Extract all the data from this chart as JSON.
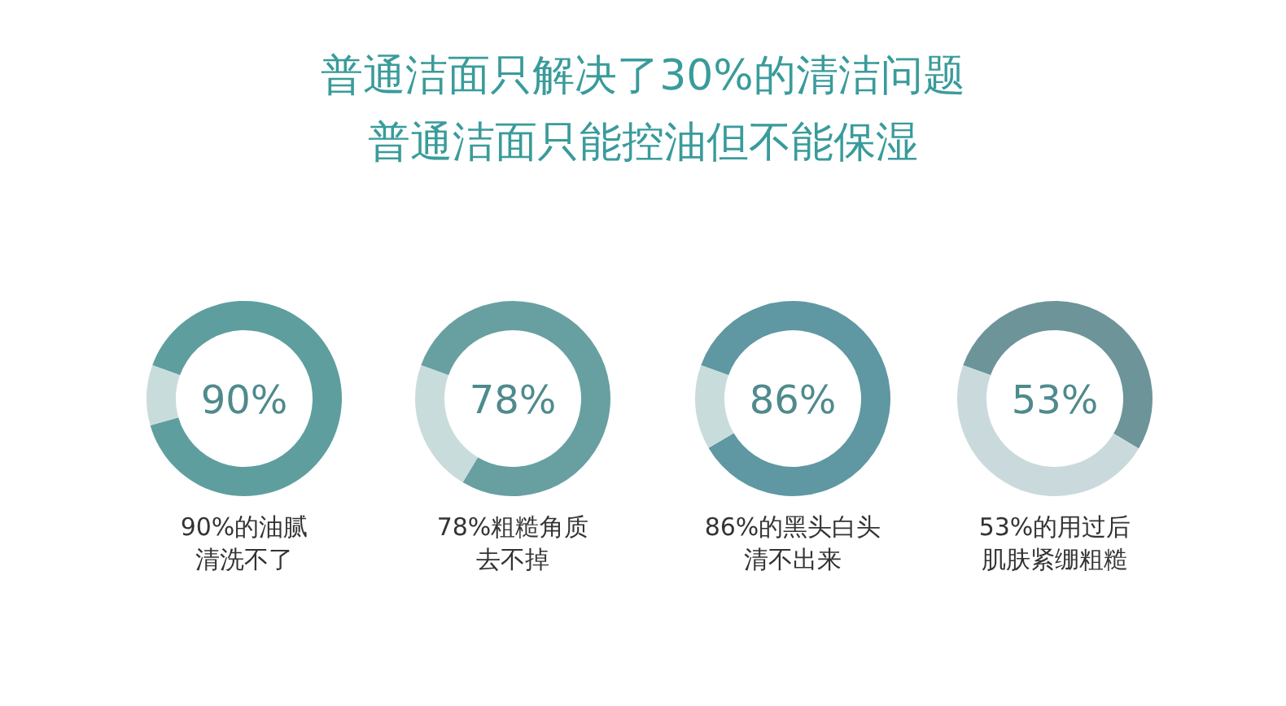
{
  "chart_data": [
    {
      "type": "donut",
      "title": "普通洁面只解决了30%的清洁问题",
      "subtitle": "普通洁面只能控油但不能保湿",
      "categories": [
        null,
        null
      ],
      "values": [
        90,
        10
      ],
      "colors": [
        "#5f9e9e",
        "#c9dcdc"
      ],
      "annotations": [
        "90%",
        "90%的油腻",
        "清洗不了"
      ]
    },
    {
      "type": "donut",
      "categories": [
        null,
        null
      ],
      "values": [
        78,
        22
      ],
      "colors": [
        "#68a0a2",
        "#c9dcdc"
      ],
      "annotations": [
        "78%",
        "78%粗糙角质",
        "去不掉"
      ]
    },
    {
      "type": "donut",
      "categories": [
        null,
        null
      ],
      "values": [
        86,
        14
      ],
      "colors": [
        "#5f98a2",
        "#c9dcdc"
      ],
      "annotations": [
        "86%",
        "86%的黑头白头",
        "清不出来"
      ]
    },
    {
      "type": "donut",
      "categories": [
        null,
        null
      ],
      "values": [
        53,
        47
      ],
      "colors": [
        "#6d9599",
        "#cadadc"
      ],
      "annotations": [
        "53%",
        "53%的用过后",
        "肌肤紧绷粗糙"
      ]
    }
  ]
}
